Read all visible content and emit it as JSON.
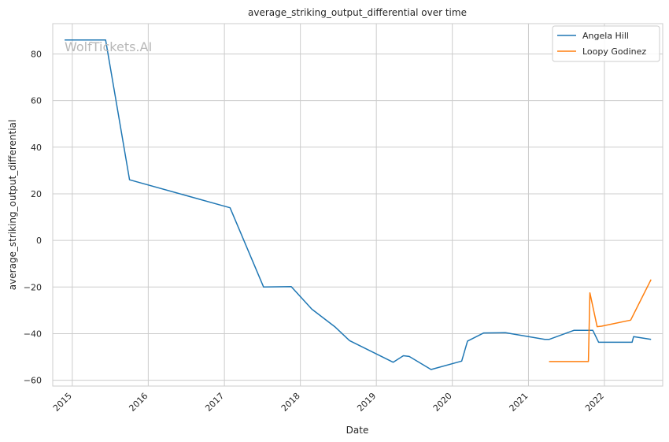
{
  "chart_data": {
    "type": "line",
    "title": "average_striking_output_differential over time",
    "xlabel": "Date",
    "ylabel": "average_striking_output_differential",
    "watermark": "WolfTickets.AI",
    "x_range": [
      "2014-09-29",
      "2022-10-08"
    ],
    "ylim": [
      -62.5,
      93
    ],
    "x_ticks": [
      "2015",
      "2016",
      "2017",
      "2018",
      "2019",
      "2020",
      "2021",
      "2022"
    ],
    "y_ticks": [
      80,
      60,
      40,
      20,
      0,
      -20,
      -40,
      -60
    ],
    "y_tick_labels": [
      "80",
      "60",
      "40",
      "20",
      "0",
      "−20",
      "−40",
      "−60"
    ],
    "grid": true,
    "legend_position": "top-right",
    "series": [
      {
        "name": "Angela Hill",
        "color": "#1f77b4",
        "points": [
          [
            "2014-11-25",
            86
          ],
          [
            "2015-06-10",
            86
          ],
          [
            "2015-10-03",
            26
          ],
          [
            "2017-01-28",
            14
          ],
          [
            "2017-07-08",
            -20
          ],
          [
            "2017-11-18",
            -19.8
          ],
          [
            "2018-02-25",
            -29.5
          ],
          [
            "2018-06-15",
            -37
          ],
          [
            "2018-08-25",
            -43
          ],
          [
            "2019-03-23",
            -52.3
          ],
          [
            "2019-05-11",
            -49.5
          ],
          [
            "2019-06-08",
            -49.8
          ],
          [
            "2019-09-21",
            -55.4
          ],
          [
            "2020-02-15",
            -51.8
          ],
          [
            "2020-03-14",
            -43.2
          ],
          [
            "2020-05-31",
            -39.7
          ],
          [
            "2020-09-12",
            -39.6
          ],
          [
            "2021-03-20",
            -42.5
          ],
          [
            "2021-04-10",
            -42.5
          ],
          [
            "2021-08-07",
            -38.6
          ],
          [
            "2021-11-06",
            -38.6
          ],
          [
            "2021-12-04",
            -43.7
          ],
          [
            "2022-05-14",
            -43.7
          ],
          [
            "2022-05-21",
            -41.3
          ],
          [
            "2022-08-13",
            -42.5
          ]
        ]
      },
      {
        "name": "Loopy Godinez",
        "color": "#ff7f0e",
        "points": [
          [
            "2021-04-10",
            -52
          ],
          [
            "2021-10-16",
            -52
          ],
          [
            "2021-10-23",
            -22.5
          ],
          [
            "2021-11-27",
            -37
          ],
          [
            "2021-12-18",
            -36.8
          ],
          [
            "2022-05-07",
            -34.2
          ],
          [
            "2022-08-13",
            -16.8
          ]
        ]
      }
    ]
  }
}
